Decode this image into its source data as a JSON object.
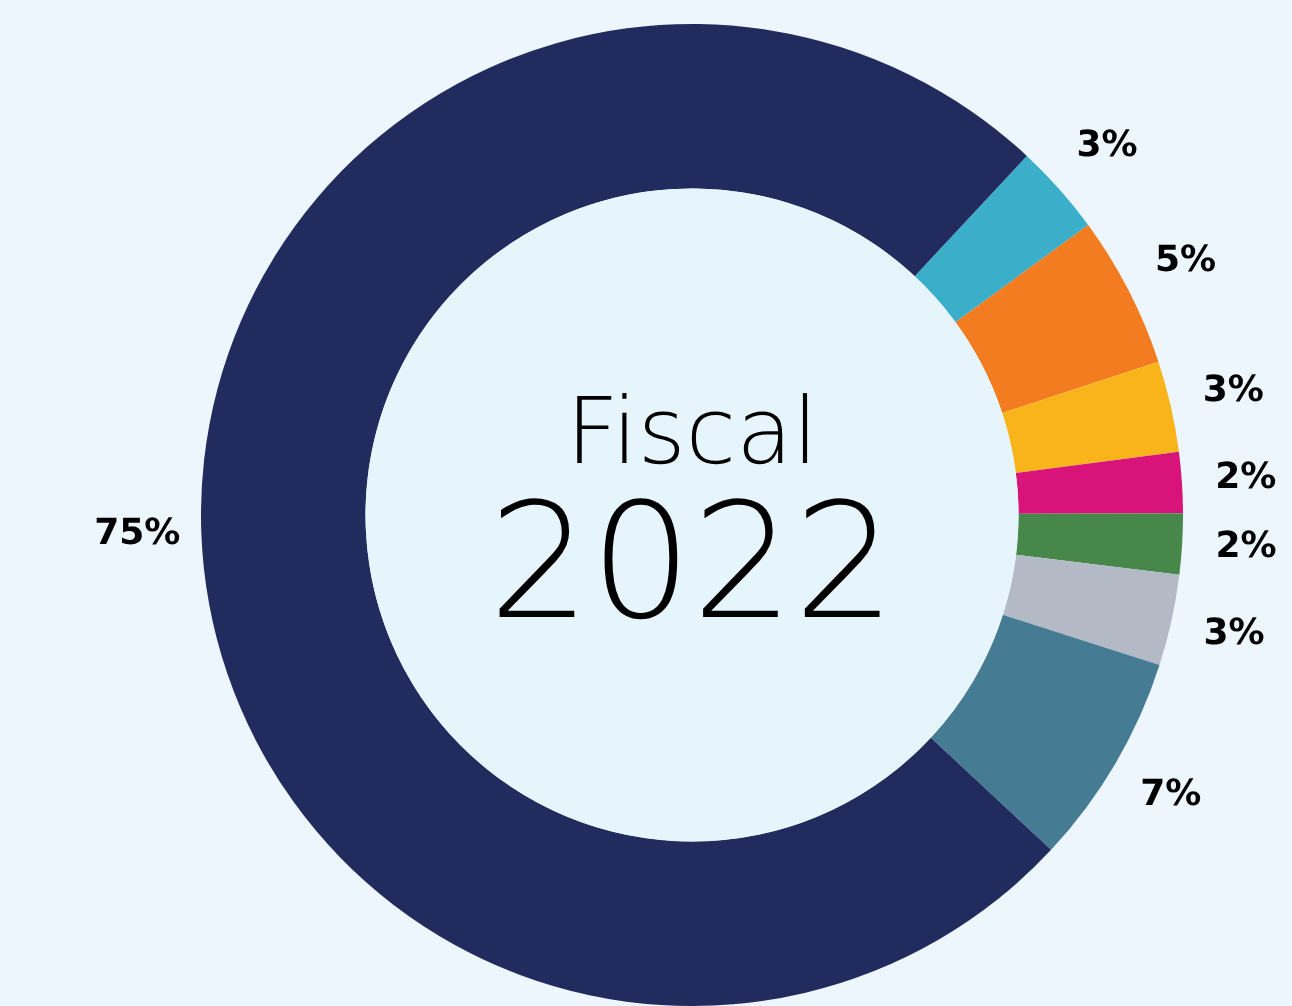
{
  "chart_data": {
    "type": "donut",
    "title": "Fiscal",
    "subtitle": "2022",
    "categories": [
      null,
      null,
      null,
      null,
      null,
      null,
      null,
      null
    ],
    "values": [
      3,
      5,
      3,
      2,
      2,
      3,
      7,
      75
    ],
    "colors": [
      "#3bafc9",
      "#f47c20",
      "#f8b41a",
      "#d8147a",
      "#47874a",
      "#b3bac5",
      "#457b93",
      "#212b5e"
    ],
    "value_labels": [
      "3%",
      "5%",
      "3%",
      "2%",
      "2%",
      "3%",
      "7%",
      "75%"
    ],
    "legend": false
  }
}
